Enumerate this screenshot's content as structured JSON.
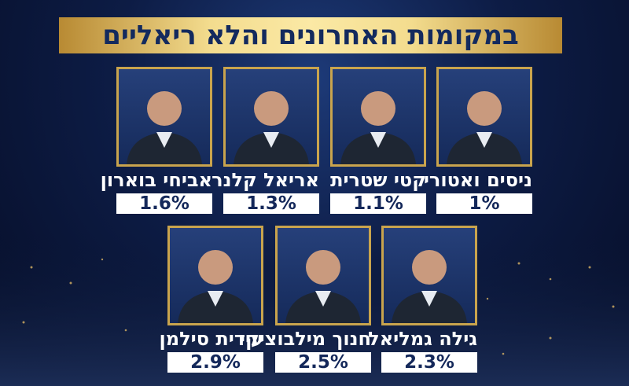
{
  "header": {
    "title": "במקומות האחרונים והלא ריאליים"
  },
  "rows": [
    [
      {
        "name": "ניסים ואטורי",
        "value": "1%"
      },
      {
        "name": "קטי שטרית",
        "value": "1.1%"
      },
      {
        "name": "אריאל קלנר",
        "value": "1.3%"
      },
      {
        "name": "אביחי בוארון",
        "value": "1.6%"
      }
    ],
    [
      {
        "name": "גילה גמליאל",
        "value": "2.3%"
      },
      {
        "name": "חנוך מילבוציקי",
        "value": "2.5%"
      },
      {
        "name": "עידית סילמן",
        "value": "2.9%"
      }
    ]
  ]
}
